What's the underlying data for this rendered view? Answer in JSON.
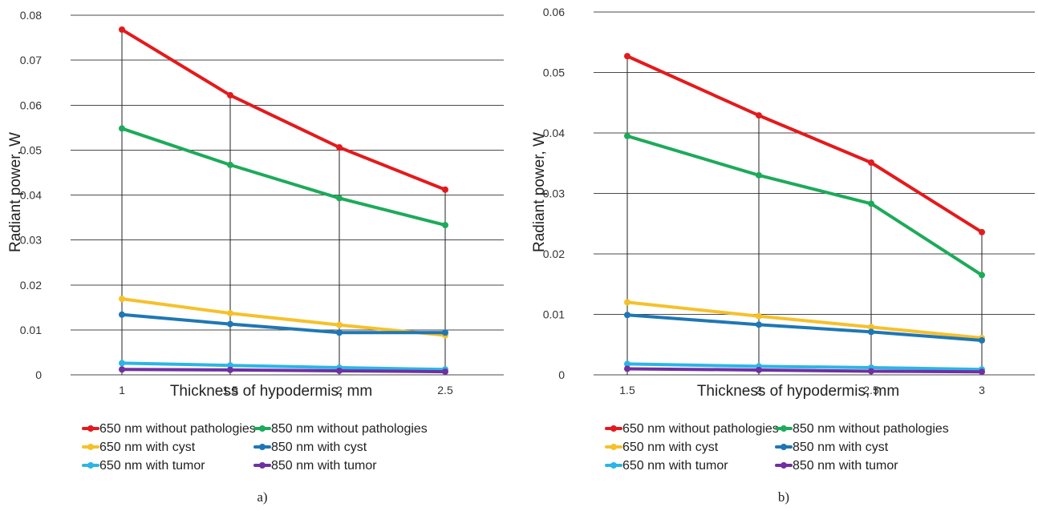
{
  "chart_data": [
    {
      "type": "line",
      "caption": "a)",
      "xlabel": "Thickness of hypodermis, mm",
      "ylabel": "Radiant power, W",
      "x": [
        1,
        1.5,
        2,
        2.5
      ],
      "x_tick_labels": [
        "1",
        "1.5",
        "2",
        "2.5"
      ],
      "ylim": [
        0,
        0.08
      ],
      "y_ticks": [
        0,
        0.01,
        0.02,
        0.03,
        0.04,
        0.05,
        0.06,
        0.07,
        0.08
      ],
      "y_tick_labels": [
        "0",
        "0.01",
        "0.02",
        "0.03",
        "0.04",
        "0.05",
        "0.06",
        "0.07",
        "0.08"
      ],
      "grid": true,
      "legend_position": "bottom",
      "series": [
        {
          "name": "650 nm without pathologies",
          "color": "#e31a1c",
          "values": [
            0.0768,
            0.0622,
            0.0506,
            0.0412
          ]
        },
        {
          "name": "850 nm without pathologies",
          "color": "#1daa5a",
          "values": [
            0.0548,
            0.0467,
            0.0393,
            0.0333
          ]
        },
        {
          "name": "650 nm with cyst",
          "color": "#f5c12b",
          "values": [
            0.0169,
            0.0137,
            0.0111,
            0.0088
          ]
        },
        {
          "name": "850 nm with cyst",
          "color": "#1f77b4",
          "values": [
            0.0134,
            0.0113,
            0.0094,
            0.0094
          ]
        },
        {
          "name": "650 nm with tumor",
          "color": "#2cb5e6",
          "values": [
            0.0026,
            0.0021,
            0.0016,
            0.0012
          ]
        },
        {
          "name": "850 nm with tumor",
          "color": "#7030a0",
          "values": [
            0.0012,
            0.0011,
            0.0009,
            0.0007
          ]
        }
      ]
    },
    {
      "type": "line",
      "caption": "b)",
      "xlabel": "Thickness of hypodermis, mm",
      "ylabel": "Radiant power, W",
      "x": [
        1.5,
        2,
        2.5,
        3
      ],
      "x_tick_labels": [
        "1.5",
        "2",
        "2.5",
        "3"
      ],
      "ylim": [
        0,
        0.06
      ],
      "y_ticks": [
        0,
        0.01,
        0.02,
        0.03,
        0.04,
        0.05,
        0.06
      ],
      "y_tick_labels": [
        "0",
        "0.01",
        "0.02",
        "0.03",
        "0.04",
        "0.05",
        "0.06"
      ],
      "grid": true,
      "legend_position": "bottom",
      "series": [
        {
          "name": "650 nm without pathologies",
          "color": "#e31a1c",
          "values": [
            0.0527,
            0.0429,
            0.0351,
            0.0236
          ]
        },
        {
          "name": "850 nm without pathologies",
          "color": "#1daa5a",
          "values": [
            0.0395,
            0.033,
            0.0283,
            0.0165
          ]
        },
        {
          "name": "650 nm with cyst",
          "color": "#f5c12b",
          "values": [
            0.012,
            0.0097,
            0.0079,
            0.0061
          ]
        },
        {
          "name": "850 nm with cyst",
          "color": "#1f77b4",
          "values": [
            0.0099,
            0.0083,
            0.0071,
            0.0057
          ]
        },
        {
          "name": "650 nm with tumor",
          "color": "#2cb5e6",
          "values": [
            0.0018,
            0.0014,
            0.0012,
            0.0009
          ]
        },
        {
          "name": "850 nm with tumor",
          "color": "#7030a0",
          "values": [
            0.001,
            0.0008,
            0.0006,
            0.0005
          ]
        }
      ]
    }
  ]
}
